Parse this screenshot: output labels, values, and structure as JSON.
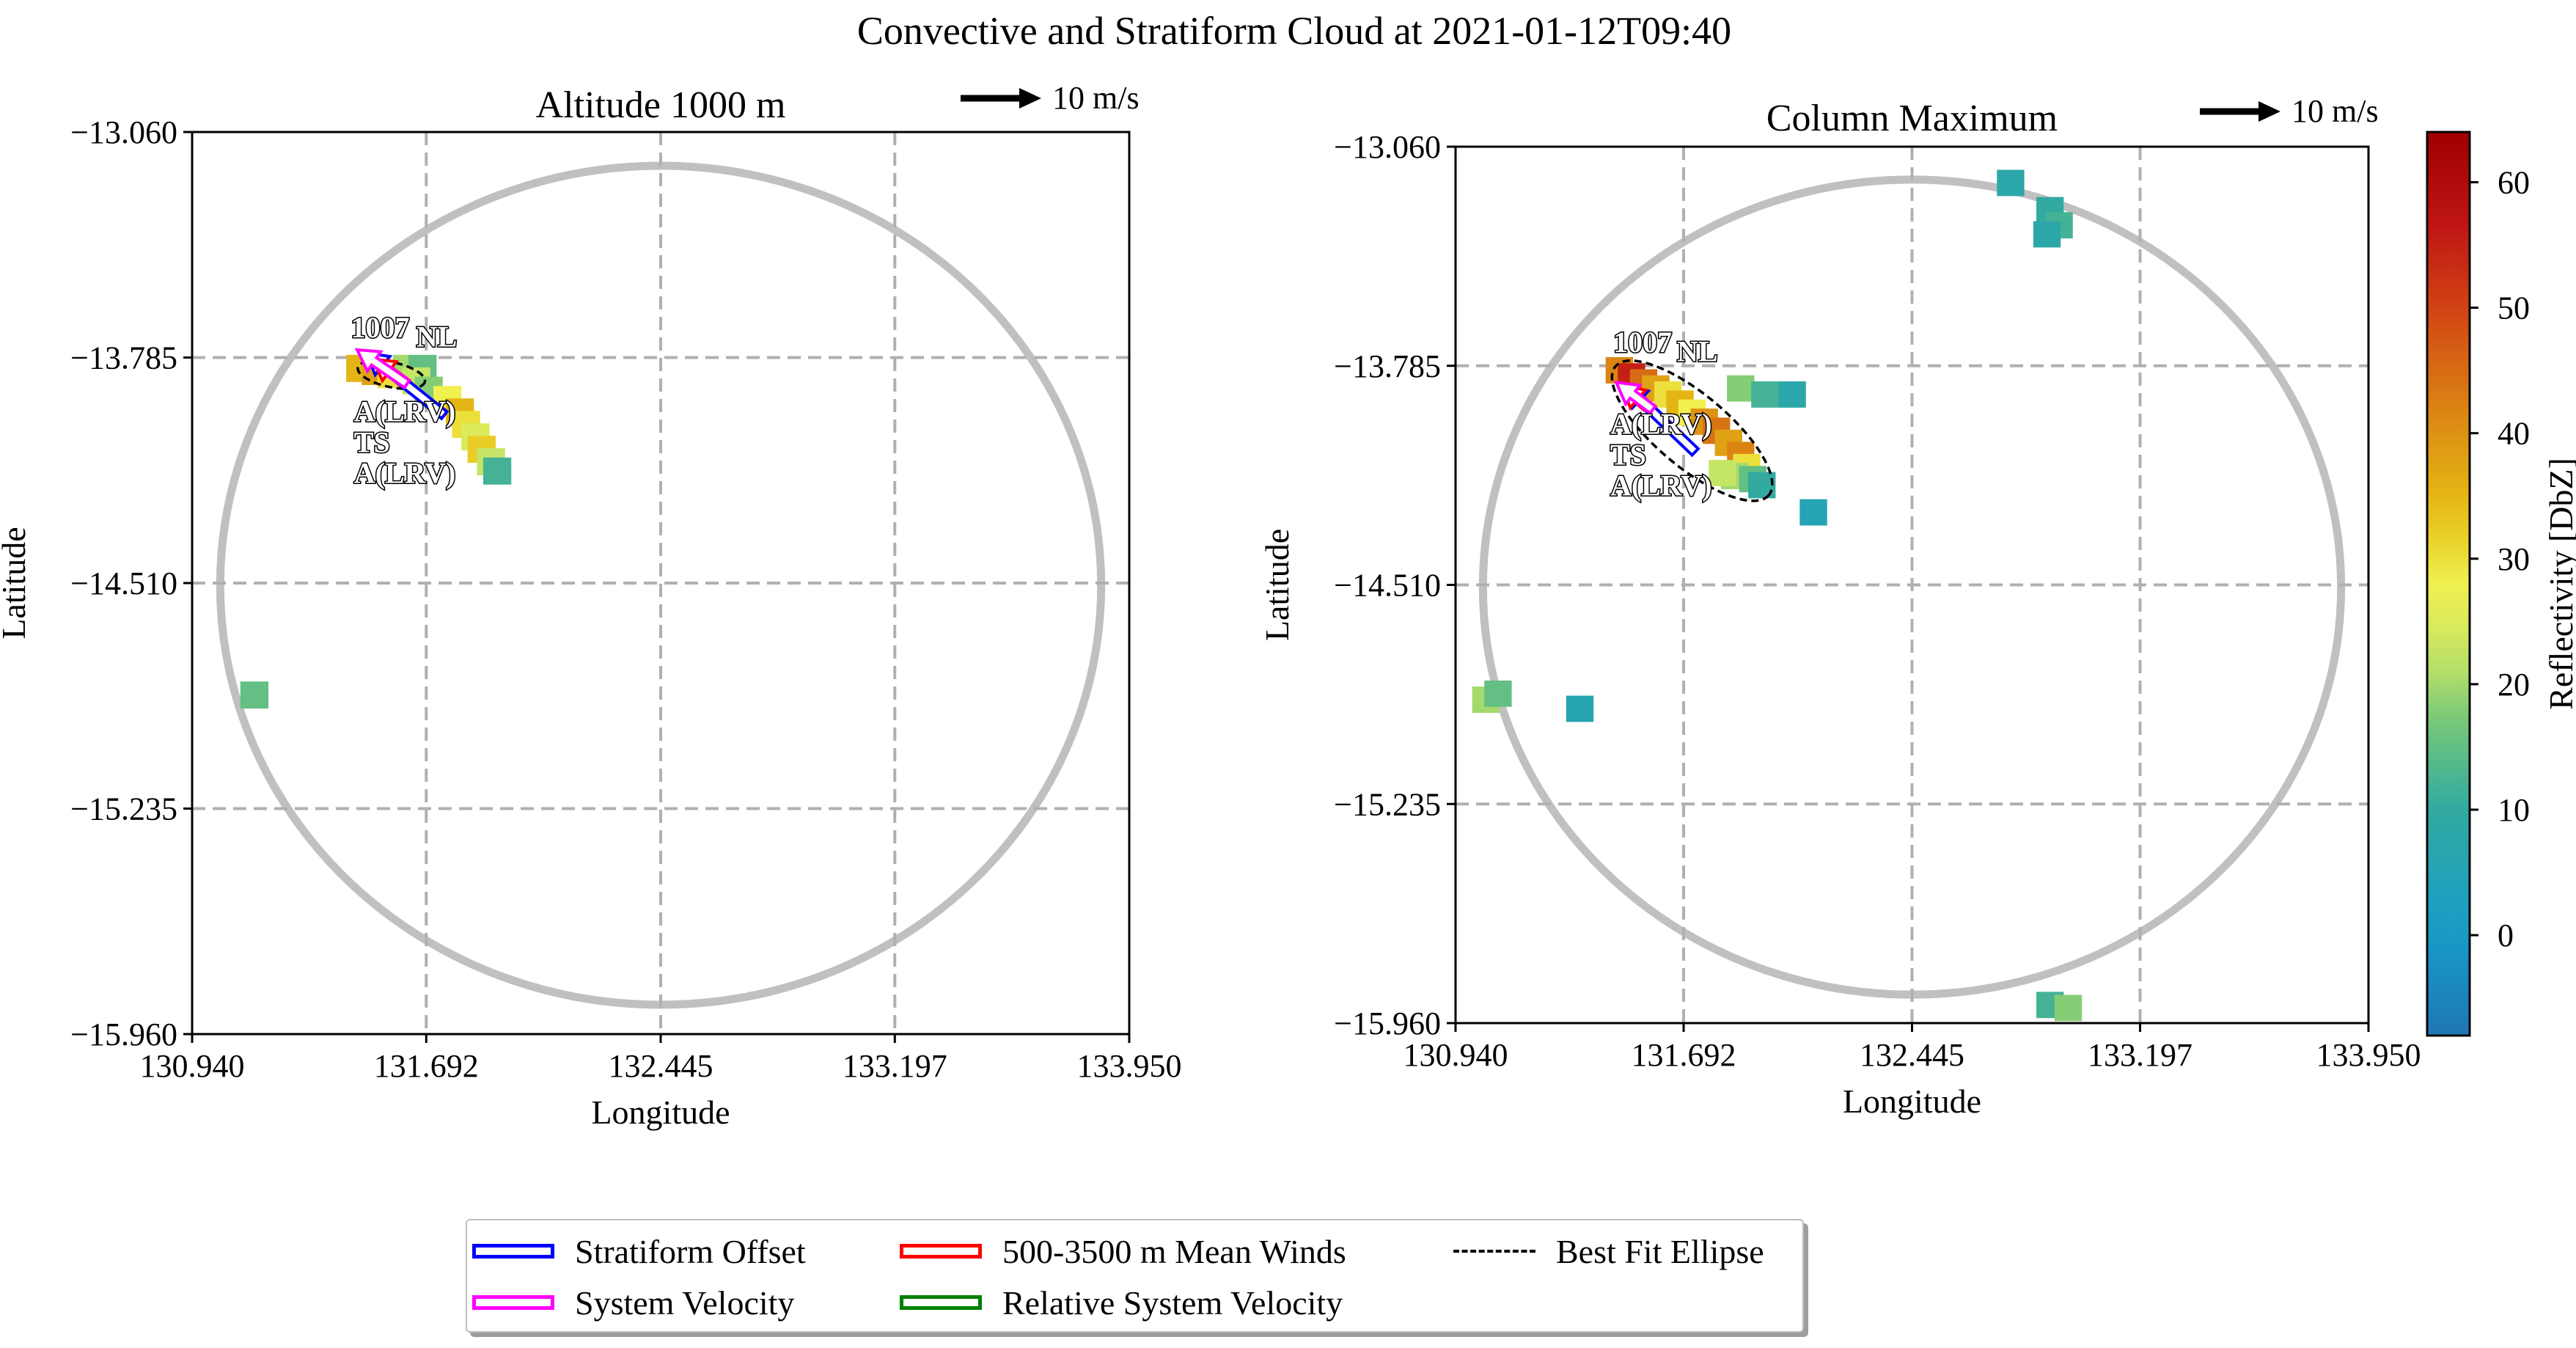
{
  "suptitle": "Convective and Stratiform Cloud at 2021-01-12T09:40",
  "colors": {
    "stratiform_offset": "#0000ff",
    "system_velocity": "#ff00ff",
    "mean_winds": "#ff0000",
    "relative_system_velocity": "#008000",
    "ellipse": "#000000",
    "range_ring": "#c0c0c0",
    "grid": "#b0b0b0"
  },
  "panels": [
    {
      "title": "Altitude 1000 m",
      "scale_label": "10 m/s",
      "xlabel": "Longitude",
      "ylabel": "Latitude"
    },
    {
      "title": "Column Maximum",
      "scale_label": "10 m/s",
      "xlabel": "Longitude",
      "ylabel": "Latitude"
    }
  ],
  "colorbar": {
    "label": "Reflectivity [DbZ]",
    "ticks": [
      "0",
      "10",
      "20",
      "30",
      "40",
      "50",
      "60"
    ],
    "range": [
      -8,
      64
    ]
  },
  "annotations": {
    "system_id": "1007",
    "labels": [
      "NL",
      "A(LRV)",
      "TS",
      "A(LRV)"
    ]
  },
  "legend": {
    "items": [
      {
        "label": "Stratiform Offset",
        "kind": "box",
        "color": "#0000ff"
      },
      {
        "label": "500-3500 m Mean Winds",
        "kind": "box",
        "color": "#ff0000"
      },
      {
        "label": "Best Fit Ellipse",
        "kind": "dash",
        "color": "#000000"
      },
      {
        "label": "System Velocity",
        "kind": "box",
        "color": "#ff00ff"
      },
      {
        "label": "Relative System Velocity",
        "kind": "box",
        "color": "#008000"
      }
    ]
  },
  "chart_data": [
    {
      "type": "heatmap",
      "title": "Altitude 1000 m",
      "xlabel": "Longitude",
      "ylabel": "Latitude",
      "xlim": [
        130.94,
        133.95
      ],
      "ylim": [
        -15.96,
        -13.06
      ],
      "xticks": [
        "130.940",
        "131.692",
        "132.445",
        "133.197",
        "133.950"
      ],
      "yticks": [
        "-13.060",
        "-13.785",
        "-14.510",
        "-15.235",
        "-15.960"
      ],
      "grid": true,
      "reflectivity_cells": [
        {
          "lon": 131.48,
          "lat": -13.82,
          "dbz": 35
        },
        {
          "lon": 131.53,
          "lat": -13.83,
          "dbz": 38
        },
        {
          "lon": 131.58,
          "lat": -13.84,
          "dbz": 30
        },
        {
          "lon": 131.63,
          "lat": -13.82,
          "dbz": 20
        },
        {
          "lon": 131.68,
          "lat": -13.82,
          "dbz": 15
        },
        {
          "lon": 131.66,
          "lat": -13.86,
          "dbz": 22
        },
        {
          "lon": 131.7,
          "lat": -13.89,
          "dbz": 18
        },
        {
          "lon": 131.76,
          "lat": -13.92,
          "dbz": 28
        },
        {
          "lon": 131.8,
          "lat": -13.96,
          "dbz": 35
        },
        {
          "lon": 131.82,
          "lat": -14.0,
          "dbz": 30
        },
        {
          "lon": 131.85,
          "lat": -14.04,
          "dbz": 25
        },
        {
          "lon": 131.87,
          "lat": -14.08,
          "dbz": 32
        },
        {
          "lon": 131.9,
          "lat": -14.12,
          "dbz": 22
        },
        {
          "lon": 131.92,
          "lat": -14.15,
          "dbz": 12
        },
        {
          "lon": 131.14,
          "lat": -14.87,
          "dbz": 15
        }
      ],
      "ellipse": {
        "center_lon": 131.58,
        "center_lat": -13.84,
        "semi_major_deg": 0.11,
        "semi_minor_deg": 0.025,
        "angle_deg": -12
      },
      "arrows": [
        {
          "name": "Stratiform Offset",
          "from": [
            131.75,
            -13.97
          ],
          "to": [
            131.5,
            -13.77
          ]
        },
        {
          "name": "500-3500 m Mean Winds",
          "from": [
            131.63,
            -13.87
          ],
          "to": [
            131.52,
            -13.79
          ]
        },
        {
          "name": "System Velocity",
          "from": [
            131.63,
            -13.87
          ],
          "to": [
            131.47,
            -13.76
          ]
        }
      ]
    },
    {
      "type": "heatmap",
      "title": "Column Maximum",
      "xlabel": "Longitude",
      "ylabel": "Latitude",
      "xlim": [
        130.94,
        133.95
      ],
      "ylim": [
        -15.96,
        -13.06
      ],
      "xticks": [
        "130.940",
        "131.692",
        "132.445",
        "133.197",
        "133.950"
      ],
      "yticks": [
        "-13.060",
        "-13.785",
        "-14.510",
        "-15.235",
        "-15.960"
      ],
      "grid": true,
      "reflectivity_cells": [
        {
          "lon": 131.48,
          "lat": -13.8,
          "dbz": 42
        },
        {
          "lon": 131.52,
          "lat": -13.82,
          "dbz": 55
        },
        {
          "lon": 131.56,
          "lat": -13.84,
          "dbz": 45
        },
        {
          "lon": 131.6,
          "lat": -13.86,
          "dbz": 38
        },
        {
          "lon": 131.64,
          "lat": -13.88,
          "dbz": 30
        },
        {
          "lon": 131.68,
          "lat": -13.91,
          "dbz": 35
        },
        {
          "lon": 131.72,
          "lat": -13.94,
          "dbz": 28
        },
        {
          "lon": 131.76,
          "lat": -13.97,
          "dbz": 40
        },
        {
          "lon": 131.8,
          "lat": -14.0,
          "dbz": 44
        },
        {
          "lon": 131.84,
          "lat": -14.04,
          "dbz": 38
        },
        {
          "lon": 131.88,
          "lat": -14.08,
          "dbz": 42
        },
        {
          "lon": 131.9,
          "lat": -14.12,
          "dbz": 30
        },
        {
          "lon": 131.86,
          "lat": -14.15,
          "dbz": 20
        },
        {
          "lon": 131.82,
          "lat": -14.14,
          "dbz": 22
        },
        {
          "lon": 131.92,
          "lat": -14.16,
          "dbz": 15
        },
        {
          "lon": 131.95,
          "lat": -14.18,
          "dbz": 10
        },
        {
          "lon": 131.88,
          "lat": -13.86,
          "dbz": 18
        },
        {
          "lon": 131.96,
          "lat": -13.88,
          "dbz": 12
        },
        {
          "lon": 132.05,
          "lat": -13.88,
          "dbz": 8
        },
        {
          "lon": 132.12,
          "lat": -14.27,
          "dbz": 5
        },
        {
          "lon": 132.77,
          "lat": -13.18,
          "dbz": 8
        },
        {
          "lon": 132.9,
          "lat": -13.27,
          "dbz": 10
        },
        {
          "lon": 132.93,
          "lat": -13.32,
          "dbz": 12
        },
        {
          "lon": 132.89,
          "lat": -13.35,
          "dbz": 8
        },
        {
          "lon": 131.04,
          "lat": -14.89,
          "dbz": 20
        },
        {
          "lon": 131.08,
          "lat": -14.87,
          "dbz": 15
        },
        {
          "lon": 131.35,
          "lat": -14.92,
          "dbz": 6
        },
        {
          "lon": 132.9,
          "lat": -15.9,
          "dbz": 12
        },
        {
          "lon": 132.96,
          "lat": -15.91,
          "dbz": 18
        }
      ],
      "ellipse": {
        "center_lon": 131.72,
        "center_lat": -14.0,
        "semi_major_deg": 0.33,
        "semi_minor_deg": 0.075,
        "angle_deg": -40
      },
      "arrows": [
        {
          "name": "Stratiform Offset",
          "from": [
            131.73,
            -14.07
          ],
          "to": [
            131.5,
            -13.85
          ]
        },
        {
          "name": "500-3500 m Mean Winds",
          "from": [
            131.57,
            -13.92
          ],
          "to": [
            131.49,
            -13.85
          ]
        },
        {
          "name": "System Velocity",
          "from": [
            131.59,
            -13.93
          ],
          "to": [
            131.47,
            -13.84
          ]
        }
      ]
    }
  ]
}
